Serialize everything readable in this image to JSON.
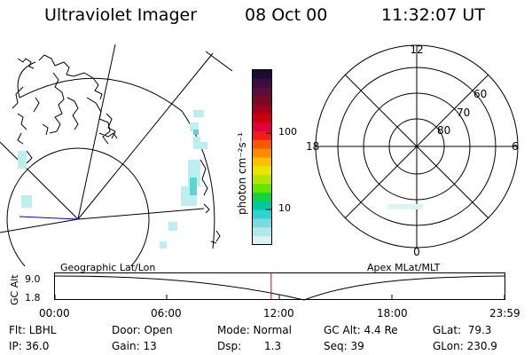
{
  "header": {
    "instrument": "Ultraviolet Imager",
    "date": "08 Oct 00",
    "time": "11:32:07 UT"
  },
  "colorbar": {
    "unit": "photon cm⁻²s⁻¹",
    "ticks": [
      "100",
      "10"
    ],
    "colors": [
      "#1a0d2e",
      "#3a0f3f",
      "#5a0d3a",
      "#7a0a22",
      "#a0001a",
      "#c80012",
      "#e2003c",
      "#f01c1c",
      "#f45a00",
      "#ff8c00",
      "#ffbe00",
      "#e6e600",
      "#b4e600",
      "#64e600",
      "#14d23c",
      "#00c8a0",
      "#32d2d2",
      "#78dcdc",
      "#b4e8ea",
      "#dcf2f4"
    ]
  },
  "polar": {
    "mlt_top": "12",
    "mlt_bottom": "0",
    "mlt_left": "18",
    "mlt_right": "6",
    "lat_labels": [
      "60",
      "70",
      "80"
    ]
  },
  "labels": {
    "geo_title": "Geographic Lat/Lon",
    "apex_title": "Apex MLat/MLT",
    "alt_axis": "GC Alt",
    "alt_ticks": [
      "9.0",
      "1.8"
    ]
  },
  "timeline": {
    "ticks": [
      "00:00",
      "06:00",
      "12:00",
      "18:00",
      "23:59"
    ],
    "marker_time": "11:32",
    "marker_color": "#d20000"
  },
  "info": {
    "flt": "Flt: LBHL",
    "ip": "IP: 36.0",
    "door": "Door: Open",
    "gain": "Gain: 13",
    "mode": "Mode: Normal",
    "dsp": "Dsp:",
    "dsp_value": "1.3",
    "gc_alt": "GC Alt: 4.4 Re",
    "seq": "Seq: 39",
    "glat": "GLat:  79.3",
    "glon": "GLon: 230.9"
  }
}
